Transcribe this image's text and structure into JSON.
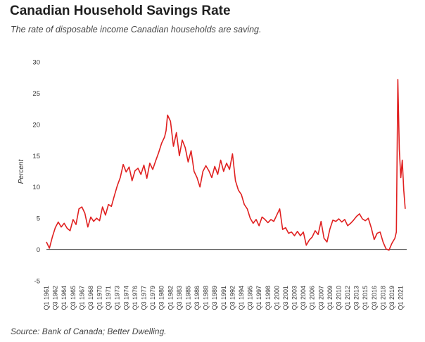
{
  "header": {
    "title": "Canadian Household Savings Rate",
    "subtitle": "The rate of disposable income Canadian households are saving."
  },
  "footer": {
    "source": "Source: Bank of Canada; Better Dwelling."
  },
  "chart_data": {
    "type": "line",
    "title": "Canadian Household Savings Rate",
    "subtitle": "The rate of disposable income Canadian households are saving.",
    "xlabel": "",
    "ylabel": "Percent",
    "ylim": [
      -5,
      30
    ],
    "yticks": [
      -5,
      0,
      5,
      10,
      15,
      20,
      25,
      30
    ],
    "grid": false,
    "legend": "none",
    "line_color": "#e02020",
    "x_tick_labels": [
      "Q1 1961",
      "Q3 1962",
      "Q1 1964",
      "Q3 1965",
      "Q1 1967",
      "Q3 1968",
      "Q1 1970",
      "Q3 1971",
      "Q1 1973",
      "Q3 1974",
      "Q1 1976",
      "Q3 1977",
      "Q1 1979",
      "Q3 1980",
      "Q1 1982",
      "Q3 1983",
      "Q1 1985",
      "Q3 1986",
      "Q1 1988",
      "Q3 1989",
      "Q1 1991",
      "Q3 1992",
      "Q1 1994",
      "Q3 1995",
      "Q1 1997",
      "Q3 1998",
      "Q1 2000",
      "Q3 2001",
      "Q1 2003",
      "Q3 2004",
      "Q1 2006",
      "Q3 2007",
      "Q1 2009",
      "Q3 2010",
      "Q1 2012",
      "Q3 2013",
      "Q1 2015",
      "Q3 2016",
      "Q1 2018",
      "Q3 2019",
      "Q1 2021"
    ],
    "series": [
      {
        "x": [
          1961.0,
          1961.5,
          1962.0,
          1962.5,
          1963.0,
          1963.5,
          1964.0,
          1964.5,
          1965.0,
          1965.5,
          1966.0,
          1966.5,
          1967.0,
          1967.5,
          1968.0,
          1968.5,
          1969.0,
          1969.5,
          1970.0,
          1970.5,
          1971.0,
          1971.5,
          1972.0,
          1972.5,
          1973.0,
          1973.5,
          1974.0,
          1974.5,
          1975.0,
          1975.5,
          1976.0,
          1976.5,
          1977.0,
          1977.5,
          1978.0,
          1978.5,
          1979.0,
          1979.5,
          1980.0,
          1980.5,
          1981.0,
          1981.25,
          1981.5,
          1982.0,
          1982.5,
          1983.0,
          1983.5,
          1984.0,
          1984.5,
          1985.0,
          1985.5,
          1986.0,
          1986.5,
          1987.0,
          1987.5,
          1988.0,
          1988.5,
          1989.0,
          1989.5,
          1990.0,
          1990.5,
          1991.0,
          1991.5,
          1992.0,
          1992.5,
          1993.0,
          1993.5,
          1994.0,
          1994.5,
          1995.0,
          1995.5,
          1996.0,
          1996.5,
          1997.0,
          1997.5,
          1998.0,
          1998.5,
          1999.0,
          1999.5,
          2000.0,
          2000.5,
          2001.0,
          2001.5,
          2002.0,
          2002.5,
          2003.0,
          2003.5,
          2004.0,
          2004.5,
          2005.0,
          2005.5,
          2006.0,
          2006.5,
          2007.0,
          2007.5,
          2008.0,
          2008.5,
          2009.0,
          2009.5,
          2010.0,
          2010.5,
          2011.0,
          2011.5,
          2012.0,
          2012.5,
          2013.0,
          2013.5,
          2014.0,
          2014.5,
          2015.0,
          2015.5,
          2016.0,
          2016.5,
          2017.0,
          2017.5,
          2018.0,
          2018.5,
          2019.0,
          2019.5,
          2020.0,
          2020.25,
          2020.5,
          2020.75,
          2021.0,
          2021.25,
          2021.5,
          2021.75
        ],
        "values": [
          1.2,
          0.2,
          2.0,
          3.5,
          4.4,
          3.6,
          4.2,
          3.4,
          3.0,
          4.8,
          4.0,
          6.5,
          6.8,
          5.8,
          3.6,
          5.2,
          4.5,
          5.0,
          4.6,
          6.8,
          5.5,
          7.2,
          6.9,
          8.6,
          10.2,
          11.5,
          13.6,
          12.4,
          13.2,
          11.0,
          12.6,
          13.0,
          12.0,
          13.5,
          11.4,
          13.8,
          12.8,
          14.2,
          15.5,
          17.0,
          18.0,
          19.0,
          21.5,
          20.5,
          16.5,
          18.7,
          15.0,
          17.5,
          16.3,
          14.0,
          15.8,
          12.5,
          11.5,
          10.0,
          12.5,
          13.4,
          12.6,
          11.5,
          13.3,
          12.0,
          14.3,
          12.5,
          13.8,
          12.8,
          15.3,
          11.0,
          9.5,
          8.8,
          7.2,
          6.5,
          5.0,
          4.2,
          4.8,
          3.8,
          5.2,
          4.8,
          4.3,
          4.8,
          4.5,
          5.5,
          6.5,
          3.2,
          3.5,
          2.6,
          2.8,
          2.2,
          2.9,
          2.2,
          2.8,
          0.7,
          1.5,
          2.0,
          3.0,
          2.4,
          4.5,
          1.8,
          1.2,
          3.3,
          4.7,
          4.5,
          4.9,
          4.4,
          4.8,
          3.8,
          4.2,
          4.7,
          5.3,
          5.7,
          4.9,
          4.6,
          5.0,
          3.5,
          1.6,
          2.6,
          2.8,
          1.2,
          0.1,
          -0.1,
          1.0,
          1.8,
          2.8,
          27.2,
          16.0,
          11.5,
          14.3,
          9.5,
          6.5
        ]
      }
    ]
  }
}
